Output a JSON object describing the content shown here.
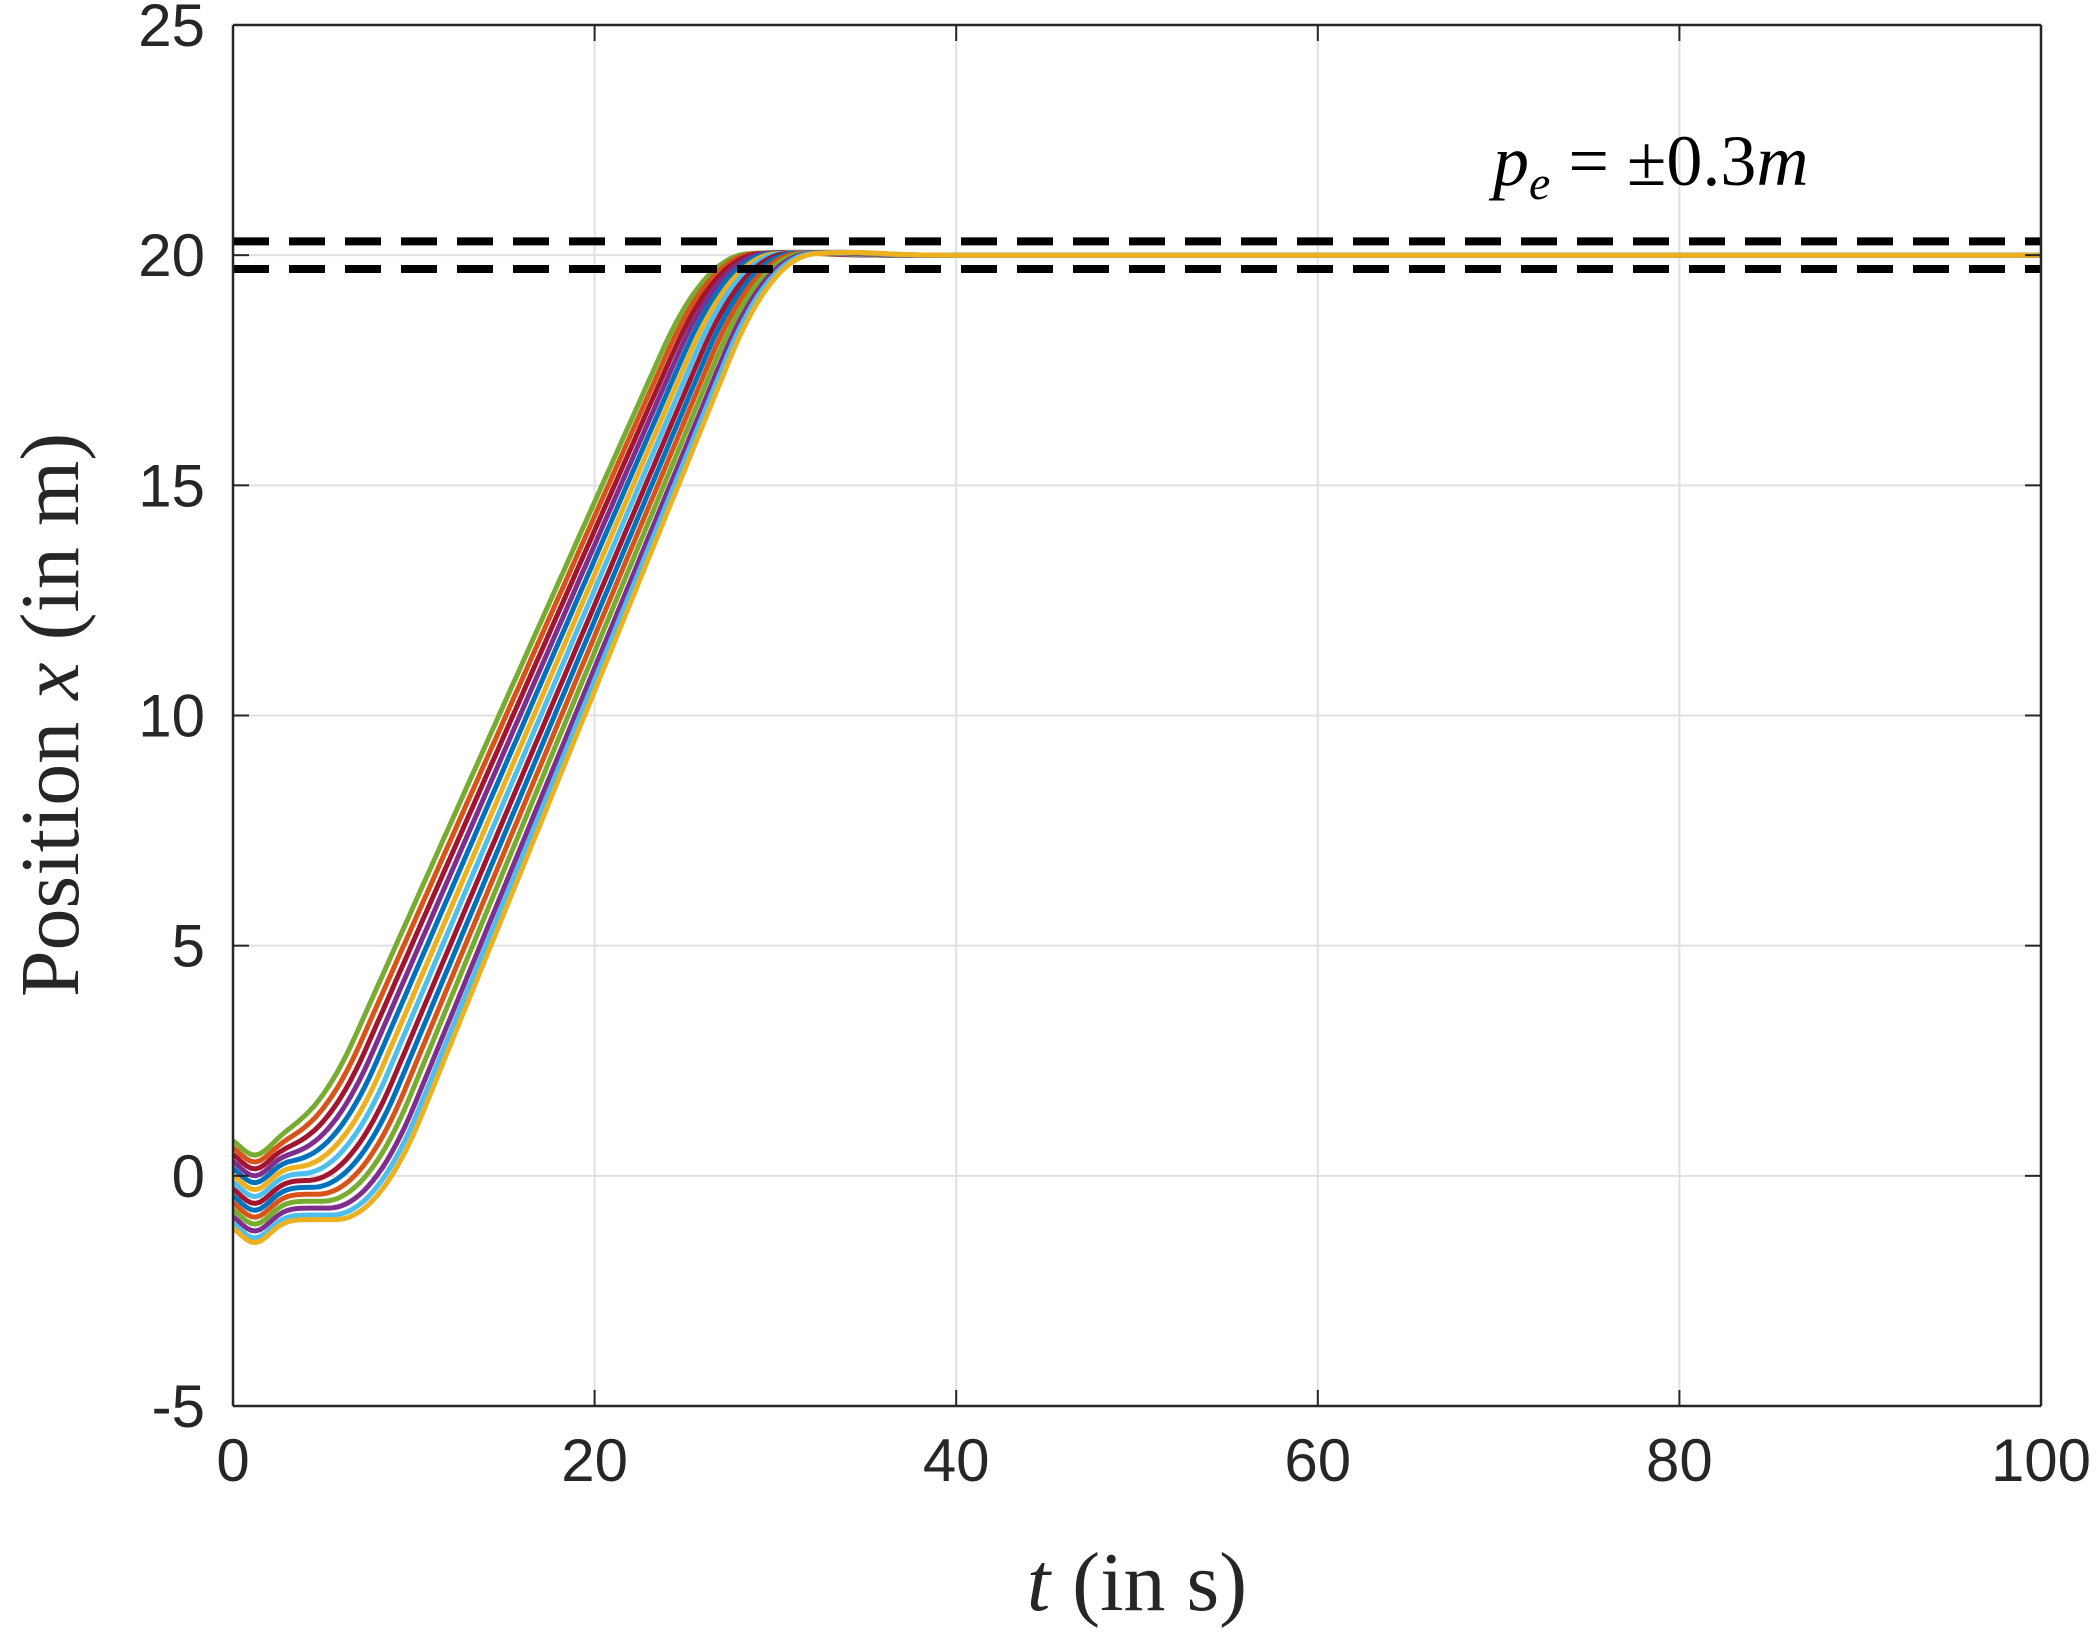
{
  "chart_data": {
    "type": "line",
    "title": "",
    "xlabel": {
      "var": "t",
      "unit": "(in s)"
    },
    "ylabel": {
      "prefix": "Position",
      "var": "x",
      "unit": "(in m)"
    },
    "xlim": [
      0,
      100
    ],
    "ylim": [
      -5,
      25
    ],
    "xticks": [
      "0",
      "20",
      "40",
      "60",
      "80",
      "100"
    ],
    "yticks": [
      "-5",
      "0",
      "5",
      "10",
      "15",
      "20",
      "25"
    ],
    "grid": true,
    "legend": "none",
    "target": 20,
    "bounds": [
      20.3,
      19.7
    ],
    "annotation": {
      "p": "p",
      "sub": "e",
      "eq": " = ±0.3",
      "m": "m"
    },
    "series": [
      {
        "color": "#77AC30",
        "start": 0.95,
        "delay": -0.5
      },
      {
        "color": "#D95319",
        "start": 0.8,
        "delay": -0.2
      },
      {
        "color": "#A2142F",
        "start": 0.65,
        "delay": 0.1
      },
      {
        "color": "#7E2F8E",
        "start": 0.5,
        "delay": 0.4
      },
      {
        "color": "#0072BD",
        "start": 0.35,
        "delay": 0.7
      },
      {
        "color": "#EDB120",
        "start": 0.2,
        "delay": 1.0
      },
      {
        "color": "#4DBEEE",
        "start": 0.05,
        "delay": 1.3
      },
      {
        "color": "#A2142F",
        "start": -0.1,
        "delay": 1.6
      },
      {
        "color": "#0072BD",
        "start": -0.25,
        "delay": 1.9
      },
      {
        "color": "#D95319",
        "start": -0.4,
        "delay": 2.2
      },
      {
        "color": "#77AC30",
        "start": -0.55,
        "delay": 2.5
      },
      {
        "color": "#7E2F8E",
        "start": -0.7,
        "delay": 2.8
      },
      {
        "color": "#4DBEEE",
        "start": -0.85,
        "delay": 3.0
      },
      {
        "color": "#EDB120",
        "start": -0.95,
        "delay": 3.2
      }
    ]
  }
}
